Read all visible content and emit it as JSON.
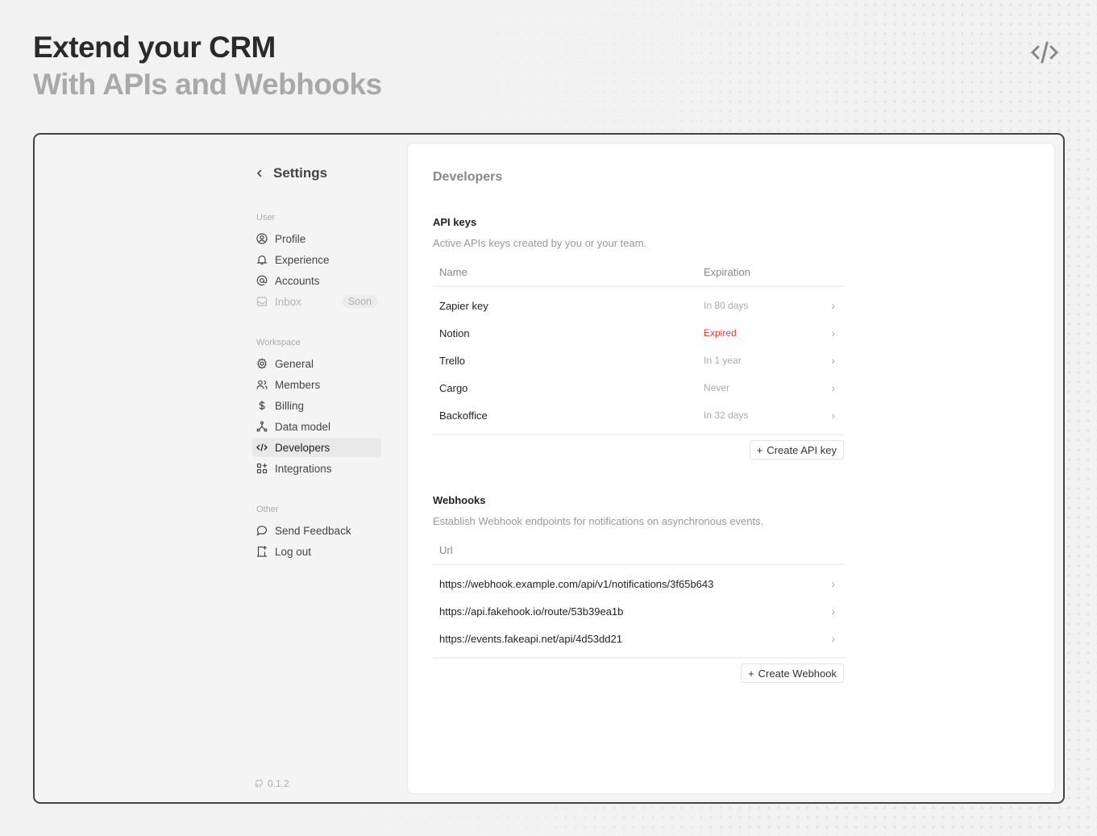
{
  "hero": {
    "title": "Extend your CRM",
    "subtitle": "With APIs and Webhooks",
    "icon": "code-icon"
  },
  "sidebar": {
    "back_label": "Settings",
    "sections": [
      {
        "label": "User",
        "items": [
          {
            "label": "Profile",
            "icon": "user-circle-icon"
          },
          {
            "label": "Experience",
            "icon": "bell-icon"
          },
          {
            "label": "Accounts",
            "icon": "at-icon"
          },
          {
            "label": "Inbox",
            "icon": "inbox-icon",
            "badge": "Soon",
            "disabled": true
          }
        ]
      },
      {
        "label": "Workspace",
        "items": [
          {
            "label": "General",
            "icon": "gear-icon"
          },
          {
            "label": "Members",
            "icon": "users-icon"
          },
          {
            "label": "Billing",
            "icon": "dollar-icon"
          },
          {
            "label": "Data model",
            "icon": "hierarchy-icon"
          },
          {
            "label": "Developers",
            "icon": "code-icon",
            "active": true
          },
          {
            "label": "Integrations",
            "icon": "apps-icon"
          }
        ]
      },
      {
        "label": "Other",
        "items": [
          {
            "label": "Send Feedback",
            "icon": "message-icon"
          },
          {
            "label": "Log out",
            "icon": "logout-icon"
          }
        ]
      }
    ],
    "version": "0.1.2"
  },
  "main": {
    "title": "Developers",
    "api_keys": {
      "title": "API keys",
      "description": "Active APIs keys created by you or your team.",
      "columns": [
        "Name",
        "Expiration"
      ],
      "rows": [
        {
          "name": "Zapier key",
          "expiration": "In 80 days"
        },
        {
          "name": "Notion",
          "expiration": "Expired"
        },
        {
          "name": "Trello",
          "expiration": "In 1 year"
        },
        {
          "name": "Cargo",
          "expiration": "Never"
        },
        {
          "name": "Backoffice",
          "expiration": "In 32 days"
        }
      ],
      "create_label": "Create API key"
    },
    "webhooks": {
      "title": "Webhooks",
      "description": "Establish Webhook endpoints for notifications on asynchronous events.",
      "columns": [
        "Url"
      ],
      "rows": [
        "https://webhook.example.com/api/v1/notifications/3f65b643",
        "https://api.fakehook.io/route/53b39ea1b",
        "https://events.fakeapi.net/api/4d53dd21"
      ],
      "create_label": "Create Webhook"
    }
  },
  "colors": {
    "expired": "#f23a3a",
    "accent_text": "#222222"
  }
}
